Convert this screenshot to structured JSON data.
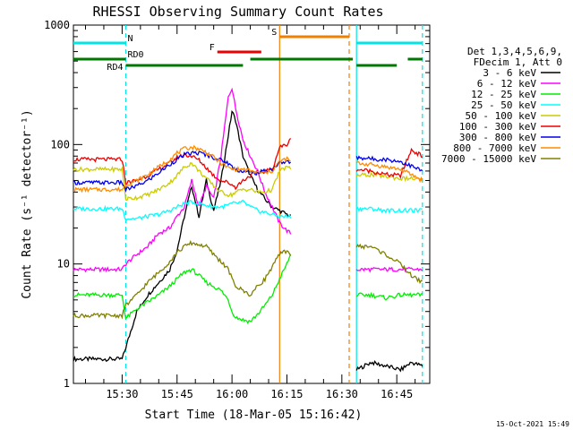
{
  "chart_data": {
    "type": "line",
    "title": "RHESSI Observing Summary Count Rates",
    "xlabel": "Start Time (18-Mar-05 15:16:42)",
    "ylabel": "Count Rate (s⁻¹ detector⁻¹)",
    "yscale": "log",
    "ylim": [
      1,
      1000
    ],
    "xlim": [
      "15:16:42",
      "16:54:00"
    ],
    "x_ticks": [
      "15:30",
      "15:45",
      "16:00",
      "16:15",
      "16:30",
      "16:45"
    ],
    "y_ticks": [
      "1",
      "10",
      "100",
      "1000"
    ],
    "date_stamp": "15-Oct-2021 15:49",
    "legend": {
      "placement": "right",
      "header": [
        "Det 1,3,4,5,6,9,",
        "FDecim 1, Att 0"
      ]
    },
    "flags": [
      {
        "label": "N",
        "color": "#00e5e5",
        "style": "solid",
        "intervals": [
          [
            "15:16:42",
            "15:31"
          ],
          [
            "16:34",
            "16:52"
          ]
        ]
      },
      {
        "label": "F",
        "color": "#ee0000",
        "style": "solid",
        "intervals": [
          [
            "15:56",
            "16:08"
          ]
        ]
      },
      {
        "label": "S",
        "color": "#f08000",
        "style": "solid",
        "intervals": [
          [
            "16:13",
            "16:32"
          ]
        ]
      },
      {
        "label": "RD0",
        "color": "#007700",
        "style": "solid",
        "intervals": [
          [
            "15:16:42",
            "15:31"
          ],
          [
            "16:05",
            "16:33"
          ],
          [
            "16:48",
            "16:52"
          ]
        ]
      },
      {
        "label": "RD4",
        "color": "#007700",
        "style": "solid",
        "intervals": [
          [
            "15:31",
            "16:03"
          ],
          [
            "16:34",
            "16:45"
          ]
        ]
      }
    ],
    "markers": [
      {
        "x": "15:31",
        "color": "#00e5e5",
        "style": "dashed"
      },
      {
        "x": "16:34",
        "color": "#00e5e5",
        "style": "solid"
      },
      {
        "x": "16:52",
        "color": "#00e5e5",
        "style": "dashed"
      },
      {
        "x": "16:13",
        "color": "#f08000",
        "style": "solid"
      },
      {
        "x": "16:32",
        "color": "#f08000",
        "style": "dashed"
      }
    ],
    "gaps": [
      [
        "16:17",
        "16:34"
      ]
    ],
    "series": [
      {
        "name": "3 - 6 keV",
        "color": "#000000",
        "x": [
          "15:16:42",
          "15:30",
          "15:31",
          "15:34",
          "15:37",
          "15:40",
          "15:43",
          "15:45",
          "15:47",
          "15:49",
          "15:51",
          "15:53",
          "15:55",
          "15:57",
          "15:59",
          "16:00",
          "16:01",
          "16:03",
          "16:05",
          "16:07",
          "16:09",
          "16:11",
          "16:13",
          "16:15",
          "16:16",
          "16:34",
          "16:38",
          "16:42",
          "16:46",
          "16:49",
          "16:52"
        ],
        "y": [
          1.6,
          1.6,
          2.0,
          4,
          5.5,
          7,
          9,
          13,
          25,
          45,
          25,
          50,
          28,
          50,
          120,
          190,
          160,
          80,
          55,
          42,
          35,
          30,
          28,
          26,
          25,
          1.3,
          1.5,
          1.4,
          1.3,
          1.5,
          1.4
        ]
      },
      {
        "name": "6 - 12 keV",
        "color": "#ff00ff",
        "x": [
          "15:16:42",
          "15:30",
          "15:31",
          "15:34",
          "15:37",
          "15:40",
          "15:43",
          "15:45",
          "15:47",
          "15:49",
          "15:51",
          "15:53",
          "15:55",
          "15:57",
          "15:59",
          "16:00",
          "16:01",
          "16:03",
          "16:05",
          "16:07",
          "16:09",
          "16:11",
          "16:13",
          "16:15",
          "16:16",
          "16:34",
          "16:38",
          "16:42",
          "16:46",
          "16:49",
          "16:52"
        ],
        "y": [
          9,
          9,
          10,
          12,
          14,
          18,
          20,
          25,
          30,
          50,
          30,
          45,
          35,
          80,
          250,
          300,
          200,
          110,
          80,
          60,
          40,
          30,
          22,
          19,
          18,
          9,
          9,
          9,
          9,
          9,
          9
        ]
      },
      {
        "name": "12 - 25 keV",
        "color": "#00ee00",
        "x": [
          "15:16:42",
          "15:30",
          "15:31",
          "15:34",
          "15:37",
          "15:40",
          "15:43",
          "15:45",
          "15:47",
          "15:49",
          "15:51",
          "15:53",
          "15:55",
          "15:57",
          "15:59",
          "16:00",
          "16:01",
          "16:03",
          "16:05",
          "16:07",
          "16:09",
          "16:11",
          "16:13",
          "16:15",
          "16:16",
          "16:34",
          "16:38",
          "16:42",
          "16:46",
          "16:49",
          "16:52"
        ],
        "y": [
          5.5,
          5.5,
          3.5,
          4.2,
          4.8,
          5.5,
          6.5,
          7.5,
          8.5,
          9,
          8,
          7,
          6.5,
          6,
          5,
          4,
          3.6,
          3.4,
          3.3,
          3.8,
          4.5,
          5.5,
          7.5,
          10,
          12,
          5.5,
          5.5,
          5.2,
          5.5,
          5.5,
          5.5
        ]
      },
      {
        "name": "25 - 50 keV",
        "color": "#00ffff",
        "x": [
          "15:16:42",
          "15:30",
          "15:31",
          "15:34",
          "15:37",
          "15:40",
          "15:43",
          "15:45",
          "15:47",
          "15:49",
          "15:51",
          "15:53",
          "15:55",
          "15:57",
          "15:59",
          "16:00",
          "16:01",
          "16:03",
          "16:05",
          "16:07",
          "16:09",
          "16:11",
          "16:13",
          "16:15",
          "16:16",
          "16:34",
          "16:38",
          "16:42",
          "16:46",
          "16:49",
          "16:52"
        ],
        "y": [
          29,
          29,
          24,
          24,
          25,
          26,
          28,
          30,
          32,
          33,
          32,
          31,
          30,
          30,
          31,
          32,
          32,
          33,
          30,
          28,
          27,
          26,
          25,
          25,
          25,
          29,
          29,
          28,
          28,
          28,
          28
        ]
      },
      {
        "name": "50 - 100 keV",
        "color": "#cccc00",
        "x": [
          "15:16:42",
          "15:30",
          "15:31",
          "15:34",
          "15:37",
          "15:40",
          "15:43",
          "15:45",
          "15:47",
          "15:49",
          "15:51",
          "15:53",
          "15:55",
          "15:57",
          "15:59",
          "16:00",
          "16:01",
          "16:03",
          "16:05",
          "16:07",
          "16:09",
          "16:11",
          "16:13",
          "16:15",
          "16:16",
          "16:34",
          "16:38",
          "16:42",
          "16:46",
          "16:49",
          "16:52"
        ],
        "y": [
          62,
          62,
          35,
          36,
          38,
          42,
          48,
          55,
          65,
          70,
          60,
          52,
          45,
          40,
          38,
          38,
          40,
          42,
          42,
          40,
          40,
          42,
          60,
          65,
          62,
          55,
          56,
          54,
          52,
          52,
          50
        ]
      },
      {
        "name": "100 - 300 keV",
        "color": "#ee0000",
        "x": [
          "15:16:42",
          "15:30",
          "15:31",
          "15:34",
          "15:37",
          "15:40",
          "15:43",
          "15:45",
          "15:47",
          "15:49",
          "15:51",
          "15:53",
          "15:55",
          "15:57",
          "15:59",
          "16:00",
          "16:01",
          "16:03",
          "16:05",
          "16:07",
          "16:09",
          "16:11",
          "16:13",
          "16:15",
          "16:16",
          "16:34",
          "16:38",
          "16:42",
          "16:46",
          "16:49",
          "16:52"
        ],
        "y": [
          75,
          75,
          48,
          50,
          55,
          62,
          70,
          78,
          82,
          80,
          74,
          64,
          55,
          50,
          48,
          46,
          44,
          50,
          55,
          58,
          60,
          62,
          95,
          100,
          110,
          62,
          60,
          56,
          55,
          90,
          80
        ]
      },
      {
        "name": "300 - 800 keV",
        "color": "#0000ee",
        "x": [
          "15:16:42",
          "15:30",
          "15:31",
          "15:34",
          "15:37",
          "15:40",
          "15:43",
          "15:45",
          "15:47",
          "15:49",
          "15:51",
          "15:53",
          "15:55",
          "15:57",
          "15:59",
          "16:00",
          "16:01",
          "16:03",
          "16:05",
          "16:07",
          "16:09",
          "16:11",
          "16:13",
          "16:15",
          "16:16",
          "16:34",
          "16:38",
          "16:42",
          "16:46",
          "16:49",
          "16:52"
        ],
        "y": [
          48,
          48,
          42,
          45,
          50,
          58,
          68,
          75,
          82,
          85,
          85,
          82,
          78,
          74,
          70,
          65,
          62,
          60,
          58,
          58,
          60,
          62,
          70,
          72,
          70,
          78,
          76,
          75,
          72,
          66,
          60
        ]
      },
      {
        "name": "800 - 7000 keV",
        "color": "#ff8c00",
        "x": [
          "15:16:42",
          "15:30",
          "15:31",
          "15:34",
          "15:37",
          "15:40",
          "15:43",
          "15:45",
          "15:47",
          "15:49",
          "15:51",
          "15:53",
          "15:55",
          "15:57",
          "15:59",
          "16:00",
          "16:01",
          "16:03",
          "16:05",
          "16:07",
          "16:09",
          "16:11",
          "16:13",
          "16:15",
          "16:16",
          "16:34",
          "16:38",
          "16:42",
          "16:46",
          "16:49",
          "16:52"
        ],
        "y": [
          42,
          42,
          46,
          50,
          56,
          65,
          75,
          85,
          92,
          95,
          92,
          86,
          78,
          70,
          64,
          62,
          62,
          62,
          60,
          58,
          58,
          60,
          72,
          76,
          72,
          70,
          68,
          65,
          62,
          56,
          50
        ]
      },
      {
        "name": "7000 - 15000 keV",
        "color": "#808000",
        "x": [
          "15:16:42",
          "15:30",
          "15:31",
          "15:34",
          "15:37",
          "15:40",
          "15:43",
          "15:45",
          "15:47",
          "15:49",
          "15:51",
          "15:53",
          "15:55",
          "15:57",
          "15:59",
          "16:00",
          "16:01",
          "16:03",
          "16:05",
          "16:07",
          "16:09",
          "16:11",
          "16:13",
          "16:15",
          "16:16",
          "16:34",
          "16:38",
          "16:42",
          "16:46",
          "16:49",
          "16:52"
        ],
        "y": [
          3.7,
          3.7,
          4.5,
          5.5,
          7,
          8.5,
          10.5,
          12.5,
          14,
          15,
          14.5,
          14,
          12,
          10.5,
          9,
          7.5,
          6.5,
          6,
          5.5,
          6.5,
          7.5,
          9.5,
          12,
          13,
          12,
          14,
          14,
          12,
          10,
          8,
          7
        ]
      }
    ]
  }
}
